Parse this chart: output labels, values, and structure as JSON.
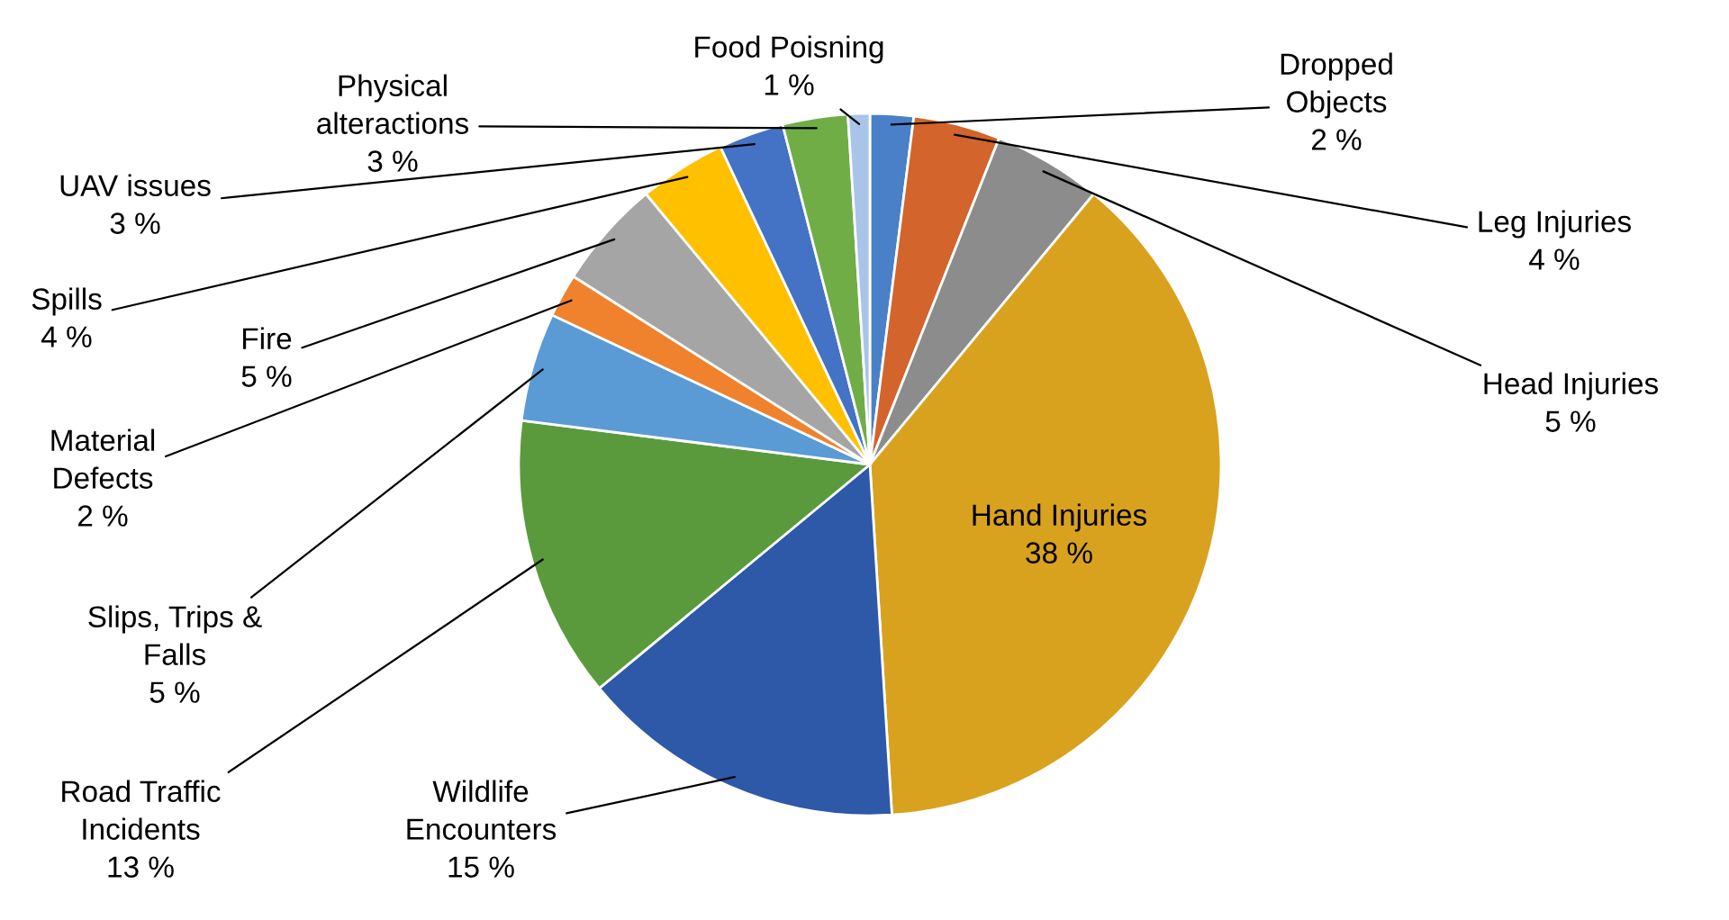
{
  "chart_data": {
    "type": "pie",
    "categories": [
      "Dropped Objects",
      "Leg Injuries",
      "Head Injuries",
      "Hand Injuries",
      "Wildlife Encounters",
      "Road Traffic Incidents",
      "Slips, Trips & Falls",
      "Material Defects",
      "Fire",
      "Spills",
      "UAV issues",
      "Physical alteractions",
      "Food Poisning"
    ],
    "values": [
      2,
      4,
      5,
      38,
      15,
      13,
      5,
      2,
      5,
      4,
      3,
      3,
      1
    ],
    "colors": [
      "#4a80c8",
      "#d3642b",
      "#8c8c8c",
      "#d9a21e",
      "#2e58a8",
      "#5a9a3c",
      "#5b9bd5",
      "#f0822e",
      "#a5a5a5",
      "#ffc000",
      "#4472c4",
      "#70ad47",
      "#a9c4e8"
    ],
    "value_labels": [
      "2 %",
      "4 %",
      "5 %",
      "38 %",
      "15 %",
      "13 %",
      "5 %",
      "2 %",
      "5 %",
      "4 %",
      "3 %",
      "3 %",
      "1 %"
    ]
  }
}
